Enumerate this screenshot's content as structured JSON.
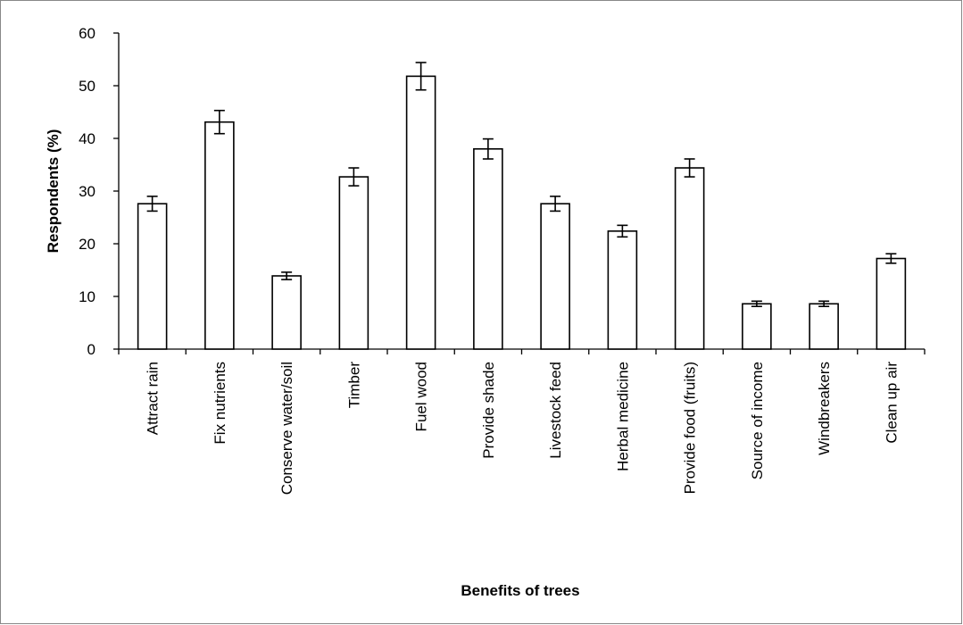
{
  "chart_data": {
    "type": "bar",
    "title": "",
    "xlabel": "Benefits of trees",
    "ylabel": "Respondents (%)",
    "ylim": [
      0,
      60
    ],
    "yticks": [
      0,
      10,
      20,
      30,
      40,
      50,
      60
    ],
    "grid": false,
    "legend": "none",
    "categories": [
      "Attract rain",
      "Fix nutrients",
      "Conserve water/soil",
      "Timber",
      "Fuel wood",
      "Provide shade",
      "Livestock feed",
      "Herbal medicine",
      "Provide food (fruits)",
      "Source of income",
      "Windbreakers",
      "Clean up air"
    ],
    "values": [
      27.6,
      43.1,
      13.9,
      32.7,
      51.8,
      38.0,
      27.6,
      22.4,
      34.4,
      8.6,
      8.6,
      17.2
    ],
    "error": [
      1.4,
      2.2,
      0.7,
      1.7,
      2.6,
      1.9,
      1.4,
      1.1,
      1.7,
      0.5,
      0.5,
      0.9
    ],
    "colors": {
      "bar_fill": "#ffffff",
      "bar_stroke": "#000000"
    }
  }
}
